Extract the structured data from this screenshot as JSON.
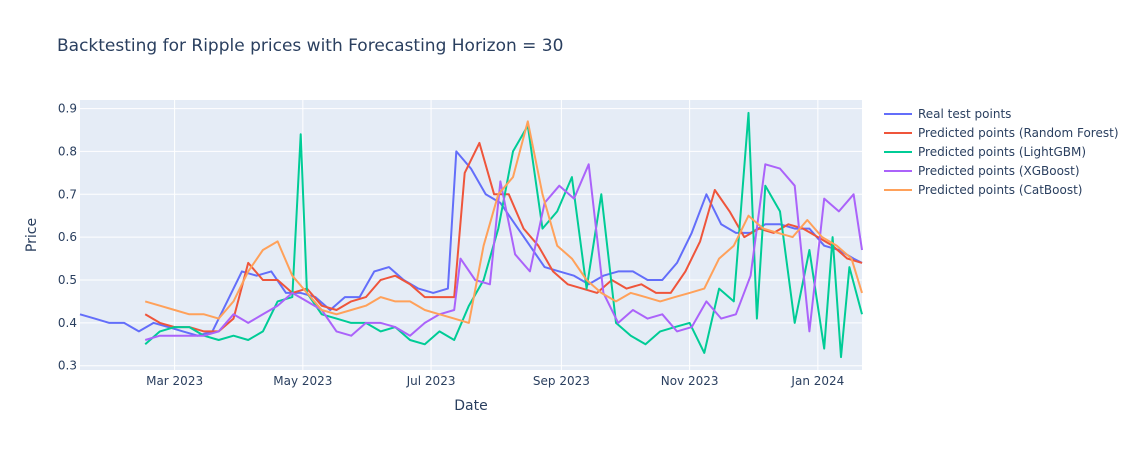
{
  "chart_data": {
    "type": "line",
    "title": "Backtesting for Ripple prices with Forecasting Horizon = 30",
    "xlabel": "Date",
    "ylabel": "Price",
    "x_ticks": [
      "Mar 2023",
      "May 2023",
      "Jul 2023",
      "Sep 2023",
      "Nov 2023",
      "Jan 2024"
    ],
    "x_tick_dates": [
      "2023-03-01",
      "2023-05-01",
      "2023-07-01",
      "2023-09-01",
      "2023-11-01",
      "2024-01-01"
    ],
    "xlim": [
      "2023-01-15",
      "2024-01-22"
    ],
    "y_ticks": [
      "0.3",
      "0.4",
      "0.5",
      "0.6",
      "0.7",
      "0.8",
      "0.9"
    ],
    "ylim": [
      0.29,
      0.92
    ],
    "grid": true,
    "legend_position": "right",
    "series": [
      {
        "name": "Real test points",
        "color": "#636efa",
        "points": [
          [
            "2023-01-15",
            0.42
          ],
          [
            "2023-01-22",
            0.41
          ],
          [
            "2023-01-29",
            0.4
          ],
          [
            "2023-02-05",
            0.4
          ],
          [
            "2023-02-12",
            0.38
          ],
          [
            "2023-02-19",
            0.4
          ],
          [
            "2023-02-26",
            0.39
          ],
          [
            "2023-03-05",
            0.38
          ],
          [
            "2023-03-12",
            0.37
          ],
          [
            "2023-03-19",
            0.38
          ],
          [
            "2023-03-26",
            0.45
          ],
          [
            "2023-04-02",
            0.52
          ],
          [
            "2023-04-09",
            0.51
          ],
          [
            "2023-04-16",
            0.52
          ],
          [
            "2023-04-23",
            0.47
          ],
          [
            "2023-04-30",
            0.47
          ],
          [
            "2023-05-07",
            0.46
          ],
          [
            "2023-05-14",
            0.43
          ],
          [
            "2023-05-21",
            0.46
          ],
          [
            "2023-05-28",
            0.46
          ],
          [
            "2023-06-04",
            0.52
          ],
          [
            "2023-06-11",
            0.53
          ],
          [
            "2023-06-18",
            0.5
          ],
          [
            "2023-06-25",
            0.48
          ],
          [
            "2023-07-02",
            0.47
          ],
          [
            "2023-07-09",
            0.48
          ],
          [
            "2023-07-13",
            0.8
          ],
          [
            "2023-07-20",
            0.76
          ],
          [
            "2023-07-27",
            0.7
          ],
          [
            "2023-08-03",
            0.68
          ],
          [
            "2023-08-10",
            0.63
          ],
          [
            "2023-08-17",
            0.58
          ],
          [
            "2023-08-24",
            0.53
          ],
          [
            "2023-08-31",
            0.52
          ],
          [
            "2023-09-07",
            0.51
          ],
          [
            "2023-09-14",
            0.49
          ],
          [
            "2023-09-21",
            0.51
          ],
          [
            "2023-09-28",
            0.52
          ],
          [
            "2023-10-05",
            0.52
          ],
          [
            "2023-10-12",
            0.5
          ],
          [
            "2023-10-19",
            0.5
          ],
          [
            "2023-10-26",
            0.54
          ],
          [
            "2023-11-02",
            0.61
          ],
          [
            "2023-11-09",
            0.7
          ],
          [
            "2023-11-16",
            0.63
          ],
          [
            "2023-11-23",
            0.61
          ],
          [
            "2023-11-30",
            0.61
          ],
          [
            "2023-12-07",
            0.63
          ],
          [
            "2023-12-14",
            0.63
          ],
          [
            "2023-12-21",
            0.62
          ],
          [
            "2023-12-28",
            0.62
          ],
          [
            "2024-01-04",
            0.58
          ],
          [
            "2024-01-11",
            0.57
          ],
          [
            "2024-01-18",
            0.55
          ],
          [
            "2024-01-22",
            0.54
          ]
        ]
      },
      {
        "name": "Predicted points (Random Forest)",
        "color": "#ef553b",
        "points": [
          [
            "2023-02-15",
            0.42
          ],
          [
            "2023-02-22",
            0.4
          ],
          [
            "2023-03-01",
            0.39
          ],
          [
            "2023-03-08",
            0.39
          ],
          [
            "2023-03-15",
            0.38
          ],
          [
            "2023-03-22",
            0.38
          ],
          [
            "2023-03-29",
            0.41
          ],
          [
            "2023-04-05",
            0.54
          ],
          [
            "2023-04-12",
            0.5
          ],
          [
            "2023-04-19",
            0.5
          ],
          [
            "2023-04-26",
            0.47
          ],
          [
            "2023-05-03",
            0.48
          ],
          [
            "2023-05-10",
            0.44
          ],
          [
            "2023-05-17",
            0.43
          ],
          [
            "2023-05-24",
            0.45
          ],
          [
            "2023-05-31",
            0.46
          ],
          [
            "2023-06-07",
            0.5
          ],
          [
            "2023-06-14",
            0.51
          ],
          [
            "2023-06-21",
            0.49
          ],
          [
            "2023-06-28",
            0.46
          ],
          [
            "2023-07-05",
            0.46
          ],
          [
            "2023-07-12",
            0.46
          ],
          [
            "2023-07-17",
            0.75
          ],
          [
            "2023-07-24",
            0.82
          ],
          [
            "2023-07-31",
            0.7
          ],
          [
            "2023-08-07",
            0.7
          ],
          [
            "2023-08-14",
            0.62
          ],
          [
            "2023-08-21",
            0.58
          ],
          [
            "2023-08-28",
            0.52
          ],
          [
            "2023-09-04",
            0.49
          ],
          [
            "2023-09-11",
            0.48
          ],
          [
            "2023-09-18",
            0.47
          ],
          [
            "2023-09-25",
            0.5
          ],
          [
            "2023-10-02",
            0.48
          ],
          [
            "2023-10-09",
            0.49
          ],
          [
            "2023-10-16",
            0.47
          ],
          [
            "2023-10-23",
            0.47
          ],
          [
            "2023-10-30",
            0.52
          ],
          [
            "2023-11-06",
            0.59
          ],
          [
            "2023-11-13",
            0.71
          ],
          [
            "2023-11-20",
            0.66
          ],
          [
            "2023-11-27",
            0.6
          ],
          [
            "2023-12-04",
            0.62
          ],
          [
            "2023-12-11",
            0.61
          ],
          [
            "2023-12-18",
            0.63
          ],
          [
            "2023-12-25",
            0.62
          ],
          [
            "2024-01-01",
            0.6
          ],
          [
            "2024-01-08",
            0.58
          ],
          [
            "2024-01-15",
            0.55
          ],
          [
            "2024-01-22",
            0.54
          ]
        ]
      },
      {
        "name": "Predicted points (LightGBM)",
        "color": "#00cc96",
        "points": [
          [
            "2023-02-15",
            0.35
          ],
          [
            "2023-02-22",
            0.38
          ],
          [
            "2023-03-01",
            0.39
          ],
          [
            "2023-03-08",
            0.39
          ],
          [
            "2023-03-15",
            0.37
          ],
          [
            "2023-03-22",
            0.36
          ],
          [
            "2023-03-29",
            0.37
          ],
          [
            "2023-04-05",
            0.36
          ],
          [
            "2023-04-12",
            0.38
          ],
          [
            "2023-04-19",
            0.45
          ],
          [
            "2023-04-26",
            0.46
          ],
          [
            "2023-04-30",
            0.84
          ],
          [
            "2023-05-03",
            0.47
          ],
          [
            "2023-05-10",
            0.42
          ],
          [
            "2023-05-17",
            0.41
          ],
          [
            "2023-05-24",
            0.4
          ],
          [
            "2023-05-31",
            0.4
          ],
          [
            "2023-06-07",
            0.38
          ],
          [
            "2023-06-14",
            0.39
          ],
          [
            "2023-06-21",
            0.36
          ],
          [
            "2023-06-28",
            0.35
          ],
          [
            "2023-07-05",
            0.38
          ],
          [
            "2023-07-12",
            0.36
          ],
          [
            "2023-07-19",
            0.44
          ],
          [
            "2023-07-26",
            0.5
          ],
          [
            "2023-08-02",
            0.62
          ],
          [
            "2023-08-09",
            0.8
          ],
          [
            "2023-08-16",
            0.86
          ],
          [
            "2023-08-23",
            0.62
          ],
          [
            "2023-08-30",
            0.66
          ],
          [
            "2023-09-06",
            0.74
          ],
          [
            "2023-09-13",
            0.48
          ],
          [
            "2023-09-20",
            0.7
          ],
          [
            "2023-09-27",
            0.4
          ],
          [
            "2023-10-04",
            0.37
          ],
          [
            "2023-10-11",
            0.35
          ],
          [
            "2023-10-18",
            0.38
          ],
          [
            "2023-10-25",
            0.39
          ],
          [
            "2023-11-01",
            0.4
          ],
          [
            "2023-11-08",
            0.33
          ],
          [
            "2023-11-15",
            0.48
          ],
          [
            "2023-11-22",
            0.45
          ],
          [
            "2023-11-29",
            0.89
          ],
          [
            "2023-12-03",
            0.41
          ],
          [
            "2023-12-07",
            0.72
          ],
          [
            "2023-12-14",
            0.66
          ],
          [
            "2023-12-21",
            0.4
          ],
          [
            "2023-12-28",
            0.57
          ],
          [
            "2024-01-04",
            0.34
          ],
          [
            "2024-01-08",
            0.6
          ],
          [
            "2024-01-12",
            0.32
          ],
          [
            "2024-01-16",
            0.53
          ],
          [
            "2024-01-22",
            0.42
          ]
        ]
      },
      {
        "name": "Predicted points (XGBoost)",
        "color": "#ab63fa",
        "points": [
          [
            "2023-02-15",
            0.36
          ],
          [
            "2023-02-22",
            0.37
          ],
          [
            "2023-03-01",
            0.37
          ],
          [
            "2023-03-08",
            0.37
          ],
          [
            "2023-03-15",
            0.37
          ],
          [
            "2023-03-22",
            0.38
          ],
          [
            "2023-03-29",
            0.42
          ],
          [
            "2023-04-05",
            0.4
          ],
          [
            "2023-04-12",
            0.42
          ],
          [
            "2023-04-19",
            0.44
          ],
          [
            "2023-04-26",
            0.47
          ],
          [
            "2023-05-03",
            0.45
          ],
          [
            "2023-05-10",
            0.43
          ],
          [
            "2023-05-17",
            0.38
          ],
          [
            "2023-05-24",
            0.37
          ],
          [
            "2023-05-31",
            0.4
          ],
          [
            "2023-06-07",
            0.4
          ],
          [
            "2023-06-14",
            0.39
          ],
          [
            "2023-06-21",
            0.37
          ],
          [
            "2023-06-28",
            0.4
          ],
          [
            "2023-07-05",
            0.42
          ],
          [
            "2023-07-12",
            0.43
          ],
          [
            "2023-07-15",
            0.55
          ],
          [
            "2023-07-22",
            0.5
          ],
          [
            "2023-07-29",
            0.49
          ],
          [
            "2023-08-03",
            0.73
          ],
          [
            "2023-08-10",
            0.56
          ],
          [
            "2023-08-17",
            0.52
          ],
          [
            "2023-08-24",
            0.68
          ],
          [
            "2023-08-31",
            0.72
          ],
          [
            "2023-09-07",
            0.69
          ],
          [
            "2023-09-14",
            0.77
          ],
          [
            "2023-09-21",
            0.47
          ],
          [
            "2023-09-28",
            0.4
          ],
          [
            "2023-10-05",
            0.43
          ],
          [
            "2023-10-12",
            0.41
          ],
          [
            "2023-10-19",
            0.42
          ],
          [
            "2023-10-26",
            0.38
          ],
          [
            "2023-11-02",
            0.39
          ],
          [
            "2023-11-09",
            0.45
          ],
          [
            "2023-11-16",
            0.41
          ],
          [
            "2023-11-23",
            0.42
          ],
          [
            "2023-11-30",
            0.51
          ],
          [
            "2023-12-07",
            0.77
          ],
          [
            "2023-12-14",
            0.76
          ],
          [
            "2023-12-21",
            0.72
          ],
          [
            "2023-12-28",
            0.38
          ],
          [
            "2024-01-04",
            0.69
          ],
          [
            "2024-01-11",
            0.66
          ],
          [
            "2024-01-18",
            0.7
          ],
          [
            "2024-01-22",
            0.57
          ]
        ]
      },
      {
        "name": "Predicted points (CatBoost)",
        "color": "#ffa15a",
        "points": [
          [
            "2023-02-15",
            0.45
          ],
          [
            "2023-02-22",
            0.44
          ],
          [
            "2023-03-01",
            0.43
          ],
          [
            "2023-03-08",
            0.42
          ],
          [
            "2023-03-15",
            0.42
          ],
          [
            "2023-03-22",
            0.41
          ],
          [
            "2023-03-29",
            0.45
          ],
          [
            "2023-04-05",
            0.52
          ],
          [
            "2023-04-12",
            0.57
          ],
          [
            "2023-04-19",
            0.59
          ],
          [
            "2023-04-26",
            0.51
          ],
          [
            "2023-05-03",
            0.47
          ],
          [
            "2023-05-10",
            0.43
          ],
          [
            "2023-05-17",
            0.42
          ],
          [
            "2023-05-24",
            0.43
          ],
          [
            "2023-05-31",
            0.44
          ],
          [
            "2023-06-07",
            0.46
          ],
          [
            "2023-06-14",
            0.45
          ],
          [
            "2023-06-21",
            0.45
          ],
          [
            "2023-06-28",
            0.43
          ],
          [
            "2023-07-05",
            0.42
          ],
          [
            "2023-07-12",
            0.41
          ],
          [
            "2023-07-19",
            0.4
          ],
          [
            "2023-07-26",
            0.58
          ],
          [
            "2023-08-02",
            0.7
          ],
          [
            "2023-08-09",
            0.74
          ],
          [
            "2023-08-16",
            0.87
          ],
          [
            "2023-08-23",
            0.7
          ],
          [
            "2023-08-30",
            0.58
          ],
          [
            "2023-09-06",
            0.55
          ],
          [
            "2023-09-13",
            0.5
          ],
          [
            "2023-09-20",
            0.47
          ],
          [
            "2023-09-27",
            0.45
          ],
          [
            "2023-10-04",
            0.47
          ],
          [
            "2023-10-11",
            0.46
          ],
          [
            "2023-10-18",
            0.45
          ],
          [
            "2023-10-25",
            0.46
          ],
          [
            "2023-11-01",
            0.47
          ],
          [
            "2023-11-08",
            0.48
          ],
          [
            "2023-11-15",
            0.55
          ],
          [
            "2023-11-22",
            0.58
          ],
          [
            "2023-11-29",
            0.65
          ],
          [
            "2023-12-06",
            0.62
          ],
          [
            "2023-12-13",
            0.61
          ],
          [
            "2023-12-20",
            0.6
          ],
          [
            "2023-12-27",
            0.64
          ],
          [
            "2024-01-03",
            0.6
          ],
          [
            "2024-01-10",
            0.58
          ],
          [
            "2024-01-17",
            0.55
          ],
          [
            "2024-01-22",
            0.47
          ]
        ]
      }
    ]
  }
}
